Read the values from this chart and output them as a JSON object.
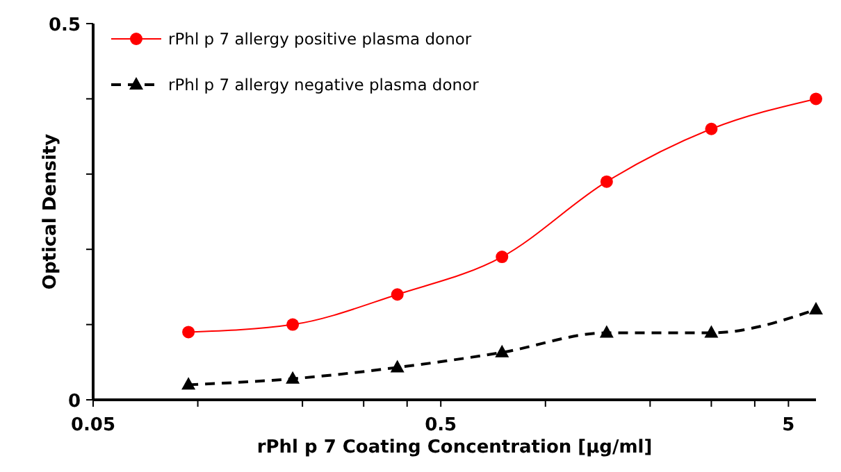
{
  "chart_data": {
    "type": "line",
    "xlabel": "rPhl p 7 Coating Concentration [µg/ml]",
    "ylabel": "Optical Density",
    "x": [
      0.094,
      0.1875,
      0.375,
      0.75,
      1.5,
      3,
      6
    ],
    "series": [
      {
        "name": "rPhl p 7 allergy positive plasma donor",
        "color": "#ff0000",
        "marker": "circle",
        "line_style": "solid",
        "values": [
          0.09,
          0.1,
          0.14,
          0.19,
          0.29,
          0.36,
          0.4
        ]
      },
      {
        "name": "rPhl p 7 allergy negative plasma donor",
        "color": "#000000",
        "marker": "triangle",
        "line_style": "dashed",
        "values": [
          0.02,
          0.028,
          0.043,
          0.063,
          0.089,
          0.089,
          0.12
        ]
      }
    ],
    "log": "x",
    "xlim": [
      0.05,
      6
    ],
    "xticks": [
      0.05,
      {
        "value": 0.1,
        "label": null
      },
      {
        "value": 0.2,
        "label": null
      },
      {
        "value": 0.3,
        "label": null
      },
      {
        "value": 0.4,
        "label": null
      },
      0.5,
      {
        "value": 1,
        "label": null
      },
      {
        "value": 2,
        "label": null
      },
      {
        "value": 3,
        "label": null
      },
      {
        "value": 4,
        "label": null
      },
      5
    ],
    "ylim": [
      0,
      0.5
    ],
    "yticks": [
      0,
      {
        "value": 0.1,
        "label": null
      },
      {
        "value": 0.2,
        "label": null
      },
      {
        "value": 0.3,
        "label": null
      },
      {
        "value": 0.4,
        "label": null
      },
      0.5
    ],
    "grid": false,
    "legend": "top left"
  }
}
